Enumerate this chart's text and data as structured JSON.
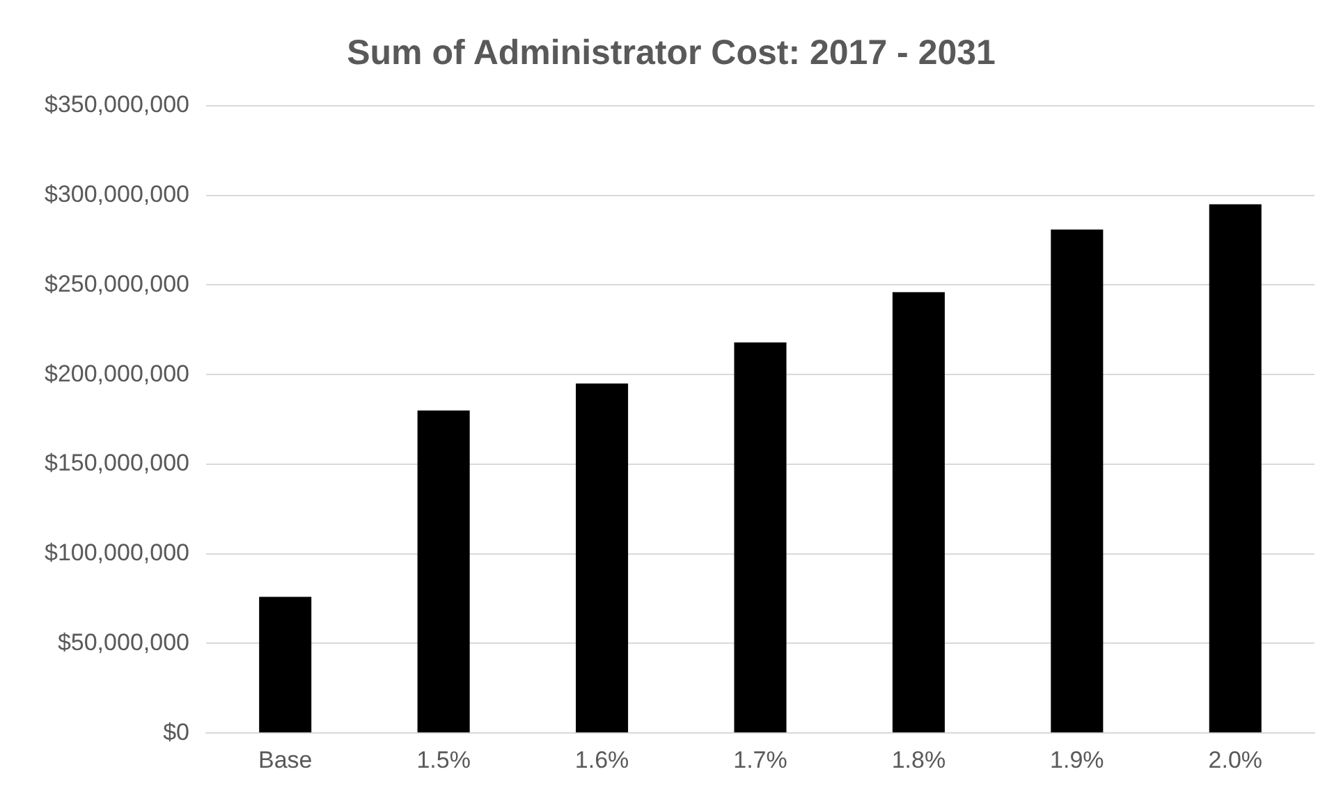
{
  "chart_data": {
    "type": "bar",
    "title": "Sum of Administrator Cost: 2017 - 2031",
    "categories": [
      "Base",
      "1.5%",
      "1.6%",
      "1.7%",
      "1.8%",
      "1.9%",
      "2.0%"
    ],
    "values": [
      76000000,
      180000000,
      195000000,
      218000000,
      246000000,
      281000000,
      295000000
    ],
    "color": "#000000",
    "ylim": [
      0,
      350000000
    ],
    "yticks": [
      {
        "value": 0,
        "label": "$0"
      },
      {
        "value": 50000000,
        "label": "$50,000,000"
      },
      {
        "value": 100000000,
        "label": "$100,000,000"
      },
      {
        "value": 150000000,
        "label": "$150,000,000"
      },
      {
        "value": 200000000,
        "label": "$200,000,000"
      },
      {
        "value": 250000000,
        "label": "$250,000,000"
      },
      {
        "value": 300000000,
        "label": "$300,000,000"
      },
      {
        "value": 350000000,
        "label": "$350,000,000"
      }
    ],
    "grid": "y"
  }
}
